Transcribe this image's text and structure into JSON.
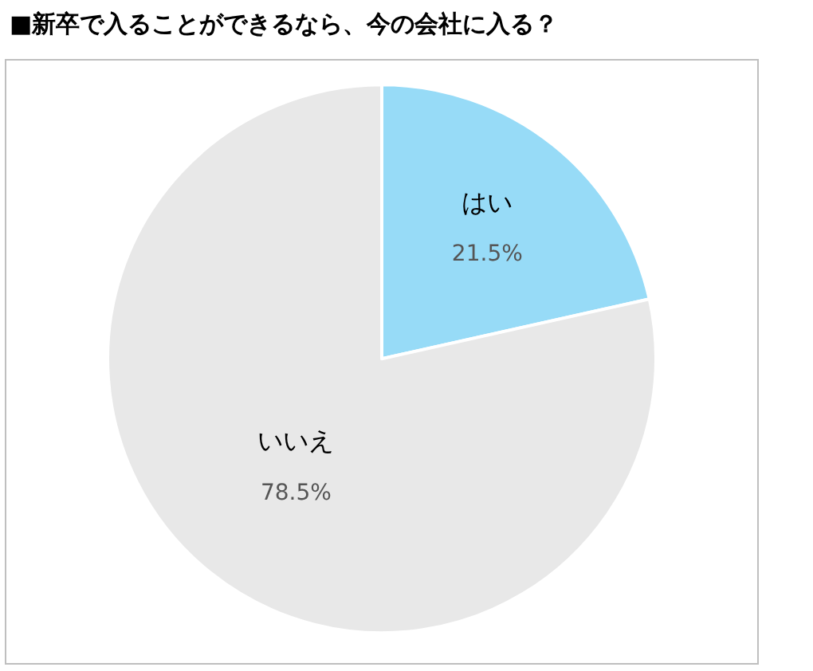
{
  "chart_data": {
    "type": "pie",
    "title": "■新卒で入ることができるなら、今の会社に入る？",
    "categories": [
      "はい",
      "いいえ"
    ],
    "values": [
      21.5,
      78.5
    ],
    "value_labels": [
      "21.5%",
      "78.5%"
    ],
    "colors": [
      "#97dbf7",
      "#e8e8e8"
    ],
    "legend": false
  }
}
